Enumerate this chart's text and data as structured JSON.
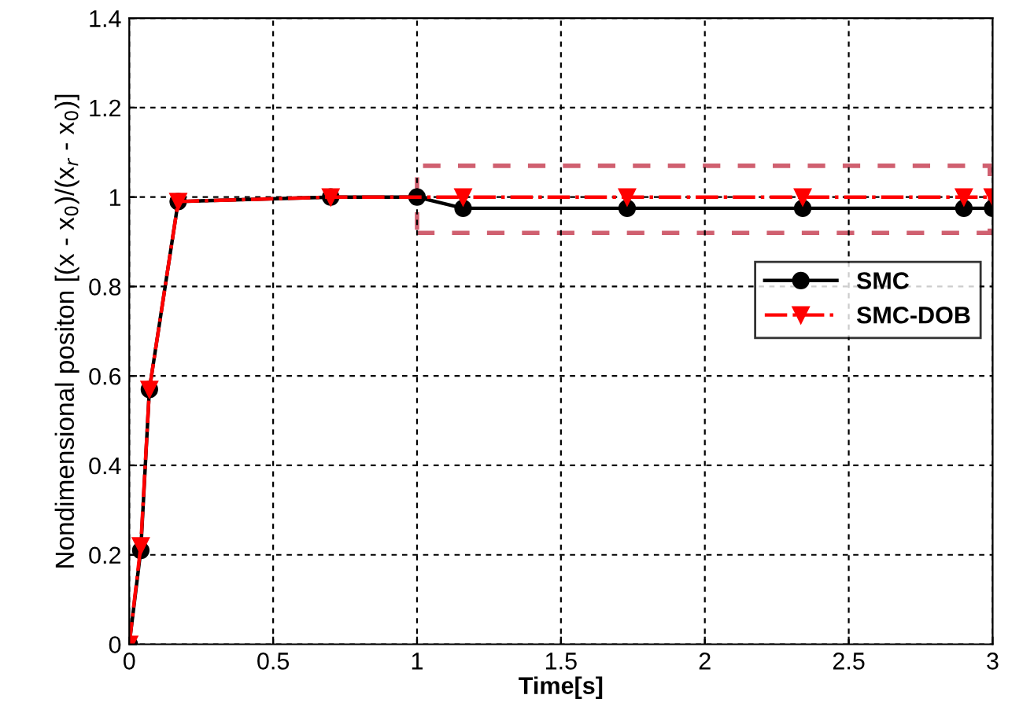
{
  "chart_data": {
    "type": "line",
    "xlabel": "Time[s]",
    "ylabel": "Nondimensional positon [(x - x$_{0}$)/(x$_{r}$ - x$_{0}$)]",
    "series": [
      {
        "name": "SMC",
        "color": "#000000",
        "marker": "circle",
        "line_style": "solid",
        "x": [
          0,
          0.04,
          0.07,
          0.17,
          0.7,
          1.0,
          1.16,
          1.73,
          2.34,
          2.9,
          3.0
        ],
        "values": [
          0,
          0.21,
          0.57,
          0.99,
          1.0,
          1.0,
          0.975,
          0.975,
          0.975,
          0.975,
          0.975
        ]
      },
      {
        "name": "SMC-DOB",
        "color": "#ff0000",
        "marker": "triangle",
        "line_style": "dashdot",
        "x": [
          0,
          0.04,
          0.07,
          0.17,
          0.7,
          1.16,
          1.73,
          2.34,
          2.9,
          3.0
        ],
        "values": [
          0,
          0.22,
          0.57,
          0.99,
          1.0,
          1.0,
          1.0,
          1.0,
          1.0,
          1.0
        ]
      }
    ],
    "xlim": [
      0,
      3
    ],
    "xticks": [
      0,
      0.5,
      1,
      1.5,
      2,
      2.5,
      3
    ],
    "ylim": [
      0,
      1.4
    ],
    "yticks": [
      0,
      0.2,
      0.4,
      0.6,
      0.8,
      1,
      1.2,
      1.4
    ],
    "grid": true,
    "legend": "right"
  }
}
